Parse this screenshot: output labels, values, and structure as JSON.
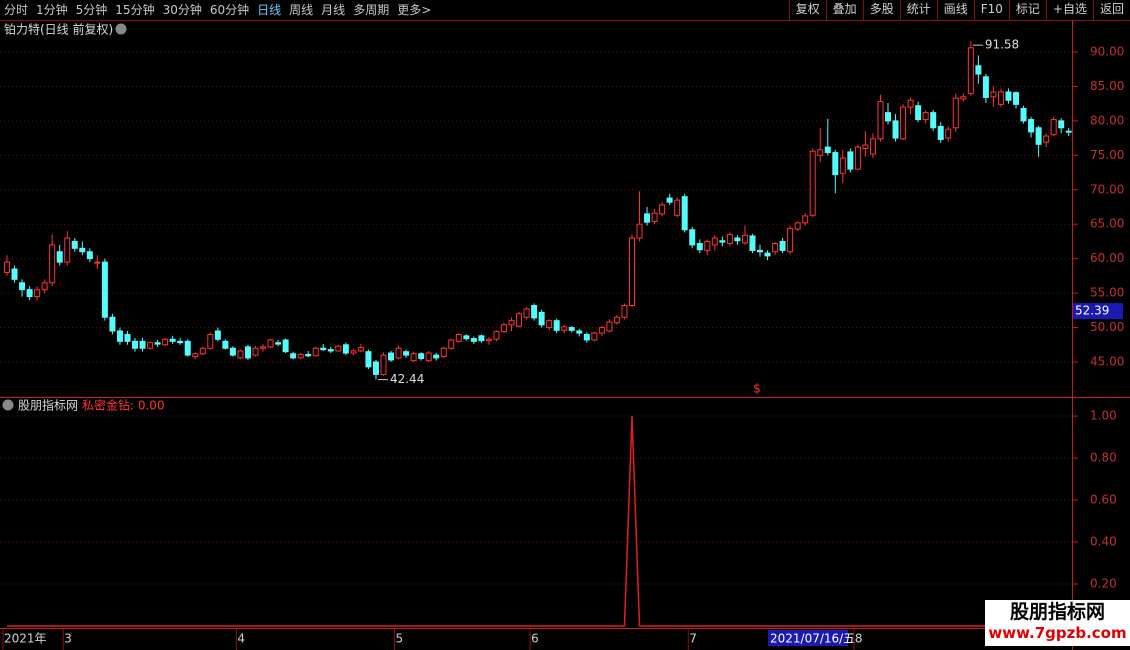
{
  "toolbar": {
    "left": [
      "分时",
      "1分钟",
      "5分钟",
      "15分钟",
      "30分钟",
      "60分钟",
      "日线",
      "周线",
      "月线",
      "多周期",
      "更多>"
    ],
    "right": [
      "复权",
      "叠加",
      "多股",
      "统计",
      "画线",
      "F10",
      "标记",
      "+自选",
      "返回"
    ]
  },
  "watermark": {
    "title": "股朋指标网",
    "url": "www.7gpzb.com"
  },
  "chart_data": [
    {
      "type": "candlestick",
      "title": "铂力特(日线 前复权)",
      "up_color": "#ff3232",
      "down_color": "#54fcfc",
      "ylim": [
        40,
        92.3
      ],
      "yticks": [
        {
          "value": 45,
          "label": "45.00"
        },
        {
          "value": 50,
          "label": "50.00"
        },
        {
          "value": 55,
          "label": "55.00"
        },
        {
          "value": 60,
          "label": "60.00"
        },
        {
          "value": 65,
          "label": "65.00"
        },
        {
          "value": 70,
          "label": "70.00"
        },
        {
          "value": 75,
          "label": "75.00"
        },
        {
          "value": 80,
          "label": "80.00"
        },
        {
          "value": 85,
          "label": "85.00"
        },
        {
          "value": 90,
          "label": "90.00"
        }
      ],
      "grid": true,
      "high_label": 91.58,
      "low_label": 42.44,
      "cursor_price": 52.39,
      "cursor_date": "2021/07/16/五",
      "marker_symbol": "$",
      "categories": [
        "2021年",
        null,
        null,
        null,
        null,
        null,
        null,
        null,
        "3",
        null,
        null,
        null,
        null,
        null,
        null,
        null,
        null,
        null,
        null,
        null,
        null,
        null,
        null,
        null,
        null,
        null,
        null,
        null,
        null,
        null,
        null,
        "4",
        null,
        null,
        null,
        null,
        null,
        null,
        null,
        null,
        null,
        null,
        null,
        null,
        null,
        null,
        null,
        null,
        null,
        null,
        null,
        null,
        "5",
        null,
        null,
        null,
        null,
        null,
        null,
        null,
        null,
        null,
        null,
        null,
        null,
        null,
        null,
        null,
        null,
        null,
        "6",
        null,
        null,
        null,
        null,
        null,
        null,
        null,
        null,
        null,
        null,
        null,
        null,
        null,
        null,
        null,
        null,
        null,
        null,
        null,
        null,
        "7",
        null,
        null,
        null,
        null,
        null,
        null,
        null,
        null,
        null,
        null,
        null,
        null,
        null,
        null,
        null,
        null,
        null,
        null,
        null,
        null,
        null,
        "8",
        null,
        null,
        null,
        null,
        null,
        null,
        null,
        null,
        null,
        null,
        null,
        null,
        null,
        null,
        null,
        null,
        null,
        null,
        null,
        null,
        null,
        null,
        null,
        null,
        null,
        null,
        null,
        null
      ],
      "ohlc": [
        [
          58,
          60.5,
          57.5,
          59.5
        ],
        [
          58.5,
          59,
          56.5,
          57
        ],
        [
          56.5,
          57,
          54.5,
          55.5
        ],
        [
          55.5,
          56,
          54,
          54.5
        ],
        [
          54.5,
          56,
          54,
          55.5
        ],
        [
          55.5,
          57,
          55,
          56.5
        ],
        [
          56.5,
          63.5,
          56,
          62
        ],
        [
          61,
          62,
          59,
          59.5
        ],
        [
          59.5,
          64,
          59,
          63
        ],
        [
          62.5,
          63,
          61,
          61.5
        ],
        [
          61.5,
          62.5,
          60.5,
          61
        ],
        [
          61,
          61.5,
          59.5,
          60
        ],
        [
          59.5,
          60.5,
          58.5,
          59.5
        ],
        [
          59.5,
          60,
          51,
          51.5
        ],
        [
          51.5,
          52,
          49,
          49.5
        ],
        [
          49.5,
          50,
          47.5,
          48
        ],
        [
          49,
          49.5,
          47.5,
          48
        ],
        [
          48,
          48.5,
          46.5,
          47
        ],
        [
          48,
          48.5,
          46.5,
          47
        ],
        [
          47,
          48,
          46.8,
          47.8
        ],
        [
          47.8,
          48.2,
          47.2,
          47.6
        ],
        [
          47.5,
          48.5,
          47.3,
          48.3
        ],
        [
          48.3,
          48.8,
          47.6,
          48
        ],
        [
          48,
          48.5,
          47.5,
          47.8
        ],
        [
          48,
          48.3,
          45.8,
          46
        ],
        [
          45.8,
          46.4,
          45.4,
          46.2
        ],
        [
          46.2,
          47.2,
          46,
          47
        ],
        [
          47,
          49.3,
          46.8,
          49
        ],
        [
          49.5,
          50,
          48,
          48.3
        ],
        [
          48,
          48.3,
          46.8,
          47
        ],
        [
          47,
          47.3,
          45.8,
          46
        ],
        [
          45.6,
          46.8,
          45.4,
          46.6
        ],
        [
          47.2,
          47.5,
          45.3,
          45.6
        ],
        [
          46,
          47.3,
          45.8,
          47
        ],
        [
          47,
          47.6,
          46.5,
          47.2
        ],
        [
          47.2,
          48.4,
          47,
          48.2
        ],
        [
          47.8,
          48.2,
          47.3,
          47.6
        ],
        [
          48.2,
          48.4,
          46.3,
          46.5
        ],
        [
          46.2,
          46.5,
          45.4,
          45.6
        ],
        [
          45.6,
          46.3,
          45.4,
          46.1
        ],
        [
          46.1,
          46.6,
          45.7,
          45.9
        ],
        [
          45.9,
          47.2,
          45.8,
          47
        ],
        [
          47,
          47.6,
          46.6,
          46.8
        ],
        [
          46.8,
          47.2,
          46.3,
          46.6
        ],
        [
          46.6,
          47.5,
          46.5,
          47.3
        ],
        [
          47.5,
          47.8,
          46,
          46.3
        ],
        [
          46.3,
          46.9,
          46,
          46.6
        ],
        [
          46.6,
          47.6,
          46.4,
          47.1
        ],
        [
          46.5,
          46.8,
          44,
          44.3
        ],
        [
          45,
          45.3,
          42.44,
          43.2
        ],
        [
          43.2,
          46.4,
          43,
          46
        ],
        [
          46.3,
          46.6,
          45,
          45.3
        ],
        [
          45.6,
          47.4,
          45.4,
          47
        ],
        [
          46.5,
          46.8,
          45.6,
          46
        ],
        [
          45.2,
          46.5,
          45,
          46.2
        ],
        [
          46.2,
          46.4,
          45.2,
          45.5
        ],
        [
          45.2,
          46.6,
          45,
          46.3
        ],
        [
          46,
          46.3,
          45.2,
          45.6
        ],
        [
          45.8,
          47.2,
          45.6,
          47
        ],
        [
          47,
          48.4,
          46.8,
          48.2
        ],
        [
          48,
          49.2,
          47.8,
          49
        ],
        [
          48.8,
          49,
          48.1,
          48.4
        ],
        [
          48.4,
          48.7,
          47.6,
          48
        ],
        [
          48.8,
          49,
          47.8,
          48.1
        ],
        [
          48.1,
          48.6,
          47.5,
          48.3
        ],
        [
          48.3,
          49.6,
          48,
          49.4
        ],
        [
          49.4,
          50.7,
          49.2,
          50.4
        ],
        [
          50.4,
          51.5,
          49.5,
          51
        ],
        [
          50.2,
          52.3,
          50,
          52
        ],
        [
          51.5,
          53,
          51.2,
          52.7
        ],
        [
          53.2,
          53.5,
          51,
          51.4
        ],
        [
          52.2,
          52.6,
          50,
          50.4
        ],
        [
          50,
          51.2,
          49.6,
          51
        ],
        [
          51,
          51.3,
          49.2,
          49.6
        ],
        [
          49.6,
          50.4,
          49.2,
          50.1
        ],
        [
          50,
          50.2,
          49.3,
          49.6
        ],
        [
          49.5,
          49.8,
          48.7,
          49.2
        ],
        [
          49,
          49.3,
          47.8,
          48.2
        ],
        [
          48.2,
          49.4,
          48,
          49.2
        ],
        [
          49.2,
          50.3,
          48.8,
          50
        ],
        [
          49.5,
          51.2,
          49.3,
          50.8
        ],
        [
          50.7,
          51.8,
          50.4,
          51.5
        ],
        [
          51.5,
          53.5,
          51.2,
          53.2
        ],
        [
          53.2,
          63.5,
          53,
          63
        ],
        [
          63,
          69.8,
          62.5,
          65
        ],
        [
          66.5,
          67.5,
          64.8,
          65.3
        ],
        [
          65.4,
          67.2,
          65,
          66.6
        ],
        [
          66.5,
          68.2,
          66.2,
          67.8
        ],
        [
          68.8,
          69.4,
          67.8,
          68.2
        ],
        [
          66.3,
          68.9,
          66,
          68.5
        ],
        [
          69,
          69.4,
          63.8,
          64.2
        ],
        [
          64.2,
          64.6,
          61.5,
          62
        ],
        [
          62.2,
          62.8,
          60.8,
          61.3
        ],
        [
          61.2,
          62.8,
          60.5,
          62.5
        ],
        [
          62,
          63.4,
          61.2,
          63
        ],
        [
          62.6,
          63.2,
          61.8,
          62.4
        ],
        [
          62.2,
          63.8,
          61.8,
          63.5
        ],
        [
          63,
          63.4,
          62,
          62.6
        ],
        [
          62.3,
          64.8,
          62,
          63.4
        ],
        [
          63.3,
          63.6,
          60.8,
          61.2
        ],
        [
          61.2,
          62,
          60.3,
          61
        ],
        [
          60.8,
          61.2,
          59.8,
          60.4
        ],
        [
          61,
          62.4,
          60.5,
          62.2
        ],
        [
          62.5,
          63,
          60.8,
          61.2
        ],
        [
          61,
          64.8,
          60.6,
          64.4
        ],
        [
          64.3,
          65.4,
          64,
          65.2
        ],
        [
          65.2,
          66.6,
          64.8,
          66.2
        ],
        [
          66.3,
          76,
          66,
          75.6
        ],
        [
          75,
          79,
          74,
          75.8
        ],
        [
          76.2,
          80.3,
          75,
          75.4
        ],
        [
          75.4,
          75.8,
          69.5,
          72.2
        ],
        [
          72.4,
          75.8,
          71,
          74.6
        ],
        [
          75.5,
          76,
          72.5,
          73
        ],
        [
          73,
          76.5,
          72.8,
          76.2
        ],
        [
          76,
          78.5,
          74.8,
          76.5
        ],
        [
          75.2,
          78.2,
          74.6,
          77.4
        ],
        [
          77.4,
          83.8,
          77,
          82.8
        ],
        [
          81.2,
          82.6,
          79.5,
          80
        ],
        [
          80,
          81,
          77,
          77.5
        ],
        [
          77.4,
          82.4,
          77.2,
          82
        ],
        [
          82,
          83.4,
          81,
          83
        ],
        [
          82.2,
          82.8,
          79.8,
          80.2
        ],
        [
          80.2,
          81.5,
          79.6,
          81.2
        ],
        [
          81.2,
          81.6,
          78.5,
          79
        ],
        [
          79.2,
          79.8,
          76.8,
          77.3
        ],
        [
          77.5,
          79.2,
          77,
          78.8
        ],
        [
          79,
          84,
          78.4,
          83.3
        ],
        [
          83.2,
          84,
          82.8,
          83.5
        ],
        [
          84,
          91.58,
          83.6,
          90.6
        ],
        [
          88,
          89.5,
          85.4,
          86.8
        ],
        [
          86.4,
          86.8,
          82.6,
          83.4
        ],
        [
          83.5,
          85,
          82,
          84.2
        ],
        [
          82.4,
          84.6,
          82,
          84.2
        ],
        [
          84.2,
          84.7,
          82.5,
          83
        ],
        [
          84.1,
          84.3,
          81.8,
          82.4
        ],
        [
          81.8,
          82.2,
          79.6,
          80
        ],
        [
          80.2,
          80.6,
          77.6,
          78.4
        ],
        [
          79,
          79.3,
          74.8,
          76.6
        ],
        [
          76.9,
          78.2,
          76.2,
          77.8
        ],
        [
          78,
          80.6,
          77.8,
          80.2
        ],
        [
          80,
          80.4,
          78.2,
          79
        ],
        [
          78.5,
          79,
          77.8,
          78.4
        ]
      ]
    },
    {
      "type": "line",
      "title": "股朋指标网",
      "legend_text": "私密金钻: 0.00",
      "color": "#e02020",
      "ylim": [
        0,
        1.086
      ],
      "yticks": [
        {
          "value": 0.2,
          "label": "0.20"
        },
        {
          "value": 0.4,
          "label": "0.40"
        },
        {
          "value": 0.6,
          "label": "0.60"
        },
        {
          "value": 0.8,
          "label": "0.80"
        },
        {
          "value": 1,
          "label": "1.00"
        }
      ],
      "grid": true,
      "values": [
        0,
        0,
        0,
        0,
        0,
        0,
        0,
        0,
        0,
        0,
        0,
        0,
        0,
        0,
        0,
        0,
        0,
        0,
        0,
        0,
        0,
        0,
        0,
        0,
        0,
        0,
        0,
        0,
        0,
        0,
        0,
        0,
        0,
        0,
        0,
        0,
        0,
        0,
        0,
        0,
        0,
        0,
        0,
        0,
        0,
        0,
        0,
        0,
        0,
        0,
        0,
        0,
        0,
        0,
        0,
        0,
        0,
        0,
        0,
        0,
        0,
        0,
        0,
        0,
        0,
        0,
        0,
        0,
        0,
        0,
        0,
        0,
        0,
        0,
        0,
        0,
        0,
        0,
        0,
        0,
        0,
        0,
        0,
        1,
        0,
        0,
        0,
        0,
        0,
        0,
        0,
        0,
        0,
        0,
        0,
        0,
        0,
        0,
        0,
        0,
        0,
        0,
        0,
        0,
        0,
        0,
        0,
        0,
        0,
        0,
        0,
        0,
        0,
        0,
        0,
        0,
        0,
        0,
        0,
        0,
        0,
        0,
        0,
        0,
        0,
        0,
        0,
        0,
        0,
        0,
        0,
        0,
        0,
        0,
        0,
        0,
        0,
        0,
        0,
        0,
        0,
        0
      ]
    }
  ]
}
